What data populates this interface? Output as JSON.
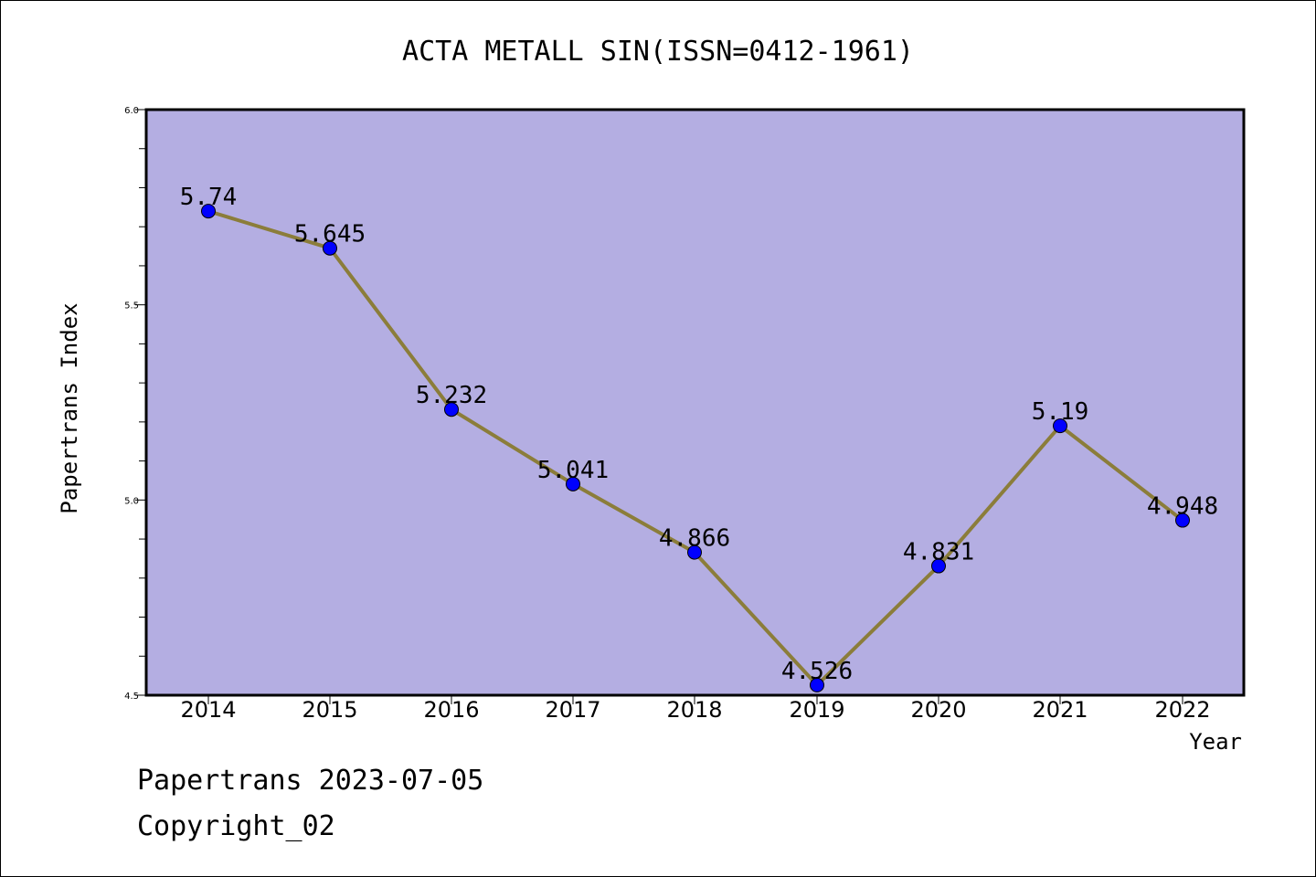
{
  "chart_data": {
    "type": "line",
    "title": "ACTA METALL SIN(ISSN=0412-1961)",
    "xlabel": "Year",
    "ylabel": "Papertrans Index",
    "categories": [
      "2014",
      "2015",
      "2016",
      "2017",
      "2018",
      "2019",
      "2020",
      "2021",
      "2022"
    ],
    "series": [
      {
        "values": [
          5.74,
          5.645,
          5.232,
          5.041,
          4.866,
          4.526,
          4.831,
          5.19,
          4.948
        ],
        "data_labels": [
          "5.74",
          "5.645",
          "5.232",
          "5.041",
          "4.866",
          "4.526",
          "4.831",
          "5.19",
          "4.948"
        ]
      }
    ],
    "ylim": [
      4.5,
      6.0
    ],
    "y_ticks": [
      "4.5",
      "5.0",
      "5.5",
      "6.0"
    ],
    "y_tick_values": [
      4.5,
      5.0,
      5.5,
      6.0
    ],
    "grid": false,
    "colors": {
      "plot_background": "#b4aee2",
      "line": "#8b7d3a",
      "marker": "#0000ff"
    }
  },
  "footer": {
    "line1": "Papertrans 2023-07-05",
    "line2": "Copyright_02"
  }
}
